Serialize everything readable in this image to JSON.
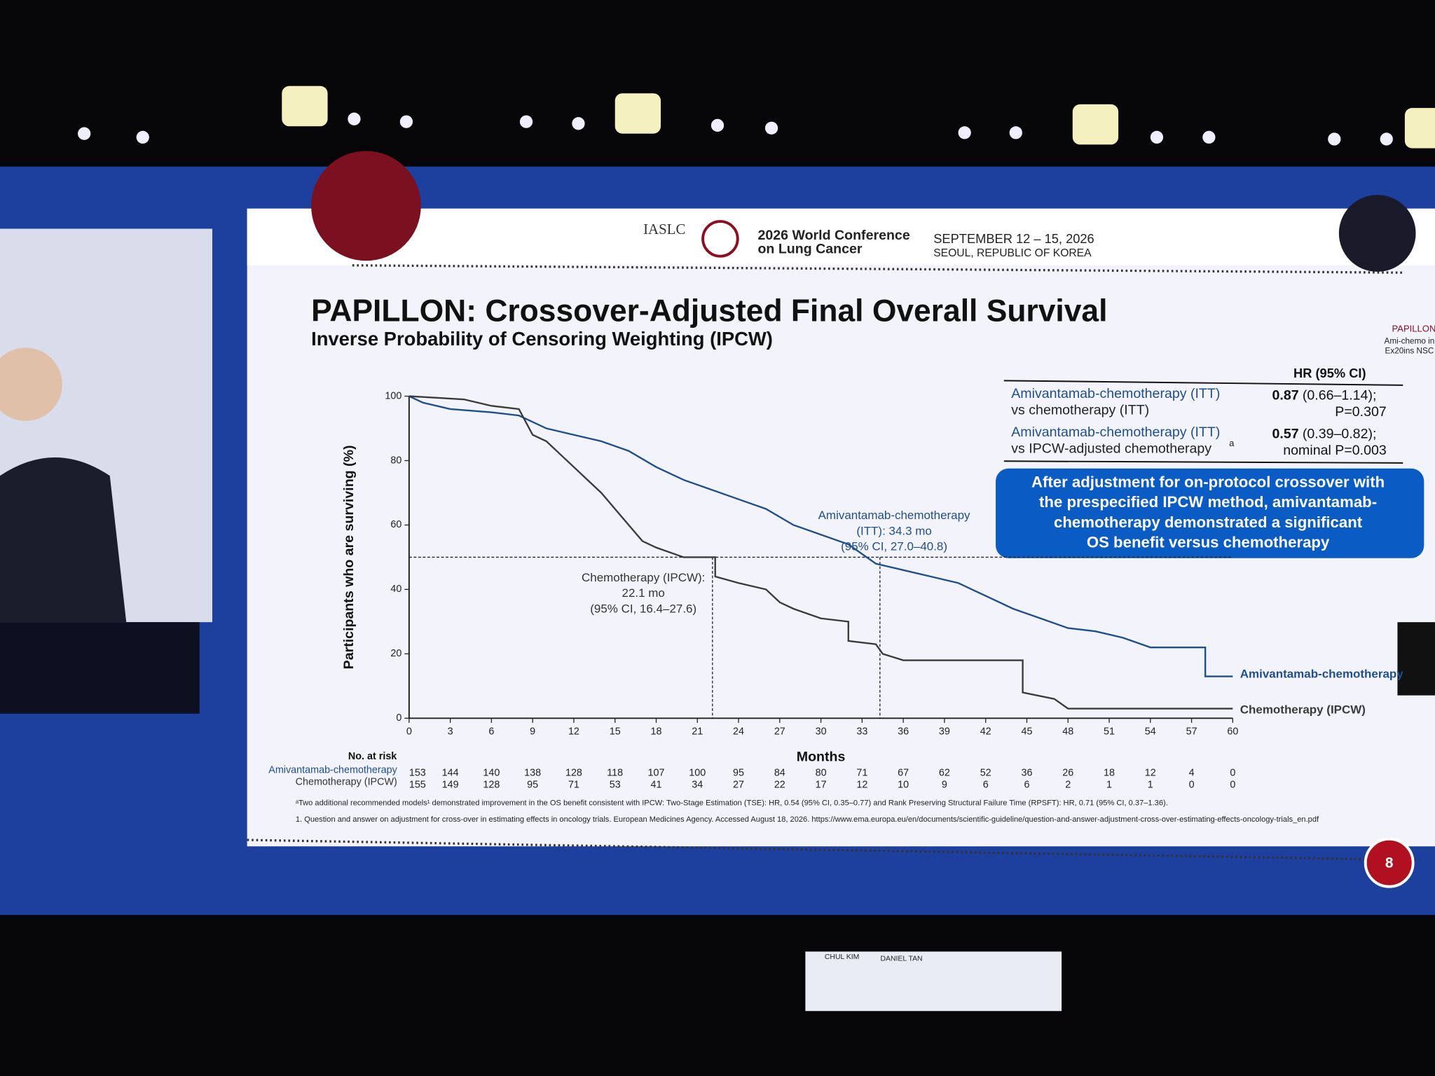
{
  "conference": {
    "org": "IASLC",
    "name_lines": [
      "2026 World Conference",
      "on Lung Cancer"
    ],
    "dates": "SEPTEMBER 12 – 15, 2026",
    "place": "SEOUL, REPUBLIC OF KOREA"
  },
  "slide": {
    "title": "PAPILLON: Crossover-Adjusted Final Overall Survival",
    "subtitle": "Inverse Probability of Censoring Weighting (IPCW)",
    "logo": "PAPILLON",
    "logo_lines": [
      "Ami-chemo in",
      "Ex20ins NSC"
    ],
    "page_number": "8",
    "hr_table": {
      "header": "HR (95% CI)",
      "rows": [
        {
          "label_lines": [
            "Amivantamab-chemotherapy (ITT)",
            "vs chemotherapy (ITT)"
          ],
          "label_sup": "",
          "hr": "0.87",
          "ci": "(0.66–1.14);",
          "p": "P=0.307"
        },
        {
          "label_lines": [
            "Amivantamab-chemotherapy (ITT)",
            "vs IPCW-adjusted chemotherapy"
          ],
          "label_sup": "a",
          "hr": "0.57",
          "ci": "(0.39–0.82);",
          "p": "nominal P=0.003"
        }
      ]
    },
    "callout": [
      "After adjustment for on-protocol crossover with",
      "the prespecified IPCW method, amivantamab-",
      "chemotherapy demonstrated a significant",
      "OS benefit versus chemotherapy"
    ],
    "footnotes": [
      "ᵃTwo additional recommended models¹ demonstrated improvement in the OS benefit consistent with IPCW: Two-Stage Estimation (TSE): HR, 0.54 (95% CI, 0.35–0.77) and Rank Preserving Structural Failure Time (RPSFT): HR, 0.71 (95% CI, 0.37–1.36).",
      "1. Question and answer on adjustment for cross-over in estimating effects in oncology trials. European Medicines Agency. Accessed August 18, 2026. https://www.ema.europa.eu/en/documents/scientific-guideline/question-and-answer-adjustment-cross-over-estimating-effects-oncology-trials_en.pdf"
    ]
  },
  "stage": {
    "name_cards": [
      "CHUL KIM",
      "DANIEL TAN"
    ]
  },
  "chart_data": {
    "type": "line",
    "xlabel": "Months",
    "ylabel": "Participants who are surviving (%)",
    "xlim": [
      0,
      60
    ],
    "xticks": [
      0,
      3,
      6,
      9,
      12,
      15,
      18,
      21,
      24,
      27,
      30,
      33,
      36,
      39,
      42,
      45,
      48,
      51,
      54,
      57,
      60
    ],
    "ylim": [
      0,
      100
    ],
    "yticks": [
      0,
      20,
      40,
      60,
      80,
      100
    ],
    "series": [
      {
        "name": "Amivantamab-chemotherapy",
        "color": "#1f4e8c",
        "x": [
          0,
          1,
          3,
          6,
          8,
          9,
          10,
          12,
          14,
          16,
          18,
          20,
          22,
          24,
          26,
          28,
          30,
          32,
          34,
          36,
          38,
          40,
          42,
          44,
          46,
          48,
          50,
          52,
          54,
          58,
          58,
          60
        ],
        "values": [
          100,
          98,
          96,
          95,
          94,
          92,
          90,
          88,
          86,
          83,
          78,
          74,
          71,
          68,
          65,
          60,
          57,
          54,
          48,
          46,
          44,
          42,
          38,
          34,
          31,
          28,
          27,
          25,
          22,
          22,
          13,
          13
        ]
      },
      {
        "name": "Chemotherapy (IPCW)",
        "color": "#3a3a3a",
        "x": [
          0,
          4,
          6,
          8,
          9,
          10,
          11,
          12,
          13,
          14,
          15,
          16,
          17,
          18,
          20,
          22.3,
          22.3,
          24,
          26,
          27,
          28,
          30,
          32,
          32,
          34,
          34.5,
          36,
          44.7,
          44.7,
          47,
          48,
          60
        ],
        "values": [
          100,
          99,
          97,
          96,
          88,
          86,
          82,
          78,
          74,
          70,
          65,
          60,
          55,
          53,
          50,
          50,
          44,
          42,
          40,
          36,
          34,
          31,
          30,
          24,
          23,
          20,
          18,
          18,
          8,
          6,
          3,
          3
        ]
      }
    ],
    "median_line": {
      "y": 50,
      "x": [
        22.1,
        34.3
      ]
    },
    "annotations": [
      {
        "lines": [
          "Amivantamab-chemotherapy",
          "(ITT): 34.3 mo",
          "(95% CI, 27.0–40.8)"
        ]
      },
      {
        "lines": [
          "Chemotherapy (IPCW):",
          "22.1 mo",
          "(95% CI, 16.4–27.6)"
        ]
      }
    ],
    "risk_table": {
      "title": "No. at risk",
      "rows": [
        {
          "name": "Amivantamab-chemotherapy",
          "values": [
            153,
            144,
            140,
            138,
            128,
            118,
            107,
            100,
            95,
            84,
            80,
            71,
            67,
            62,
            52,
            36,
            26,
            18,
            12,
            4,
            0
          ]
        },
        {
          "name": "Chemotherapy (IPCW)",
          "values": [
            155,
            149,
            128,
            95,
            71,
            53,
            41,
            34,
            27,
            22,
            17,
            12,
            10,
            9,
            6,
            6,
            2,
            1,
            1,
            0,
            0
          ]
        }
      ]
    }
  }
}
